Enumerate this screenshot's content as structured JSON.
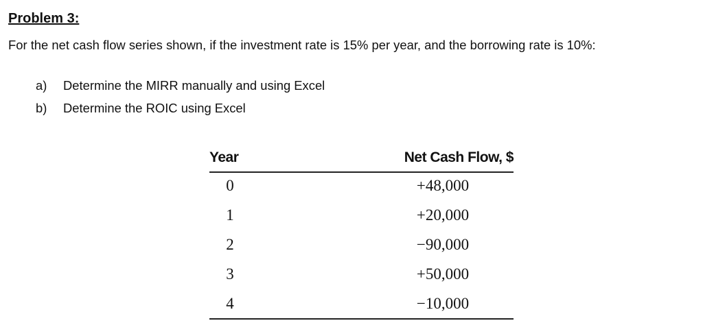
{
  "heading": "Problem 3:",
  "paragraph": "For the net cash flow series shown, if the investment rate is 15% per year, and the borrowing rate is 10%:",
  "items": [
    {
      "marker": "a)",
      "text": "Determine the MIRR manually and using Excel"
    },
    {
      "marker": "b)",
      "text": "Determine the ROIC using Excel"
    }
  ],
  "table": {
    "header": [
      "Year",
      "Net Cash Flow, $"
    ],
    "rows": [
      [
        "0",
        "+48,000"
      ],
      [
        "1",
        "+20,000"
      ],
      [
        "2",
        "−90,000"
      ],
      [
        "3",
        "+50,000"
      ],
      [
        "4",
        "−10,000"
      ]
    ]
  }
}
